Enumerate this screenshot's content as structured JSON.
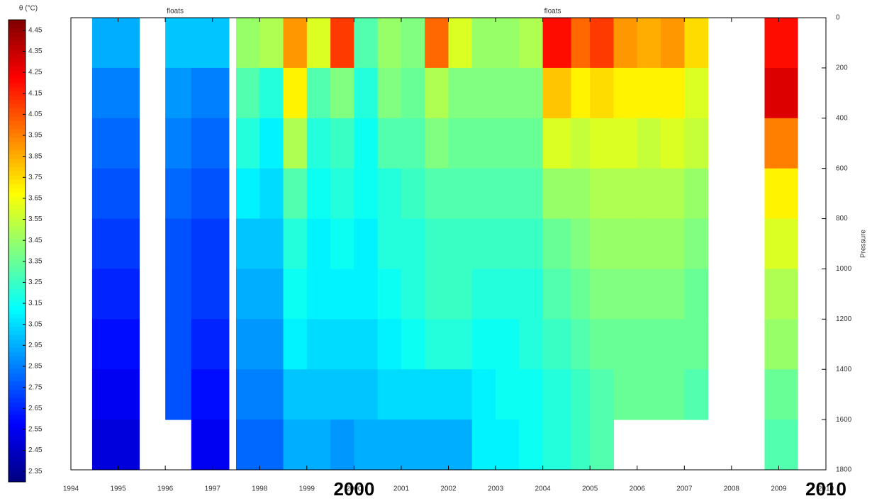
{
  "chart_data": {
    "type": "heatmap",
    "colorbar_label": "θ (°C)",
    "y_label": "Pressure",
    "colormap": "jet",
    "clim": [
      2.3,
      4.5
    ],
    "cticks": [
      4.45,
      4.35,
      4.25,
      4.15,
      4.05,
      3.95,
      3.85,
      3.75,
      3.65,
      3.55,
      3.45,
      3.35,
      3.25,
      3.15,
      3.05,
      2.95,
      2.85,
      2.75,
      2.65,
      2.55,
      2.45,
      2.35
    ],
    "xlim": [
      1994,
      2010
    ],
    "xticks": [
      1994,
      1995,
      1996,
      1997,
      1998,
      1999,
      2000,
      2001,
      2002,
      2003,
      2004,
      2005,
      2006,
      2007,
      2008,
      2009,
      2010
    ],
    "ylim": [
      0,
      1800
    ],
    "y_reversed": true,
    "yticks": [
      0,
      200,
      400,
      600,
      800,
      1000,
      1200,
      1400,
      1600,
      1800
    ],
    "x_bins": [
      1994.45,
      1995.45,
      1996.0,
      1996.55,
      1997.35,
      1997.5,
      1998.0,
      1998.5,
      1999.0,
      1999.5,
      2000.0,
      2000.5,
      2001.0,
      2001.5,
      2002.0,
      2002.5,
      2003.0,
      2003.5,
      2004.0,
      2004.6,
      2005.0,
      2005.5,
      2006.0,
      2006.5,
      2007.0,
      2007.5,
      2008.7,
      2009.4
    ],
    "y_bins": [
      0,
      200,
      400,
      600,
      800,
      1000,
      1200,
      1400,
      1600,
      1800
    ],
    "values": [
      [
        2.95,
        2.85,
        2.8,
        2.75,
        2.7,
        2.65,
        2.6,
        2.55,
        2.5
      ],
      [
        null,
        null,
        null,
        null,
        null,
        null,
        null,
        null,
        null
      ],
      [
        3.0,
        2.9,
        2.85,
        2.8,
        2.75,
        2.75,
        2.75,
        2.75,
        null
      ],
      [
        3.0,
        2.85,
        2.8,
        2.75,
        2.7,
        2.7,
        2.65,
        2.6,
        2.55
      ],
      [
        null,
        null,
        null,
        null,
        null,
        null,
        null,
        null,
        null
      ],
      [
        3.45,
        3.3,
        3.2,
        3.1,
        3.0,
        2.95,
        2.9,
        2.85,
        2.8
      ],
      [
        3.5,
        3.2,
        3.1,
        3.05,
        3.0,
        2.95,
        2.9,
        2.85,
        2.8
      ],
      [
        3.9,
        3.7,
        3.5,
        3.3,
        3.2,
        3.15,
        3.1,
        3.0,
        2.95
      ],
      [
        3.6,
        3.3,
        3.2,
        3.15,
        3.1,
        3.1,
        3.05,
        3.0,
        2.95
      ],
      [
        4.1,
        3.4,
        3.25,
        3.2,
        3.15,
        3.1,
        3.05,
        3.0,
        2.9
      ],
      [
        3.3,
        3.2,
        3.15,
        3.15,
        3.1,
        3.1,
        3.05,
        3.0,
        2.95
      ],
      [
        3.45,
        3.4,
        3.3,
        3.2,
        3.2,
        3.15,
        3.1,
        3.05,
        2.95
      ],
      [
        3.4,
        3.35,
        3.3,
        3.25,
        3.2,
        3.2,
        3.15,
        3.05,
        2.95
      ],
      [
        4.0,
        3.5,
        3.4,
        3.3,
        3.25,
        3.25,
        3.2,
        3.05,
        2.95
      ],
      [
        3.6,
        3.4,
        3.35,
        3.3,
        3.25,
        3.25,
        3.2,
        3.05,
        2.95
      ],
      [
        3.45,
        3.4,
        3.35,
        3.3,
        3.25,
        3.2,
        3.15,
        3.1,
        3.1
      ],
      [
        3.45,
        3.4,
        3.35,
        3.3,
        3.25,
        3.2,
        3.15,
        3.15,
        3.1
      ],
      [
        3.5,
        3.4,
        3.35,
        3.3,
        3.25,
        3.2,
        3.2,
        3.15,
        3.15
      ],
      [
        4.2,
        3.8,
        3.6,
        3.45,
        3.35,
        3.3,
        3.25,
        3.2,
        3.2
      ],
      [
        4.0,
        3.7,
        3.55,
        3.45,
        3.4,
        3.35,
        3.3,
        3.25,
        3.25
      ],
      [
        4.1,
        3.75,
        3.6,
        3.5,
        3.45,
        3.4,
        3.35,
        3.3,
        3.3
      ],
      [
        3.9,
        3.7,
        3.6,
        3.5,
        3.45,
        3.4,
        3.35,
        3.35,
        null
      ],
      [
        3.85,
        3.7,
        3.55,
        3.5,
        3.45,
        3.4,
        3.35,
        3.35,
        null
      ],
      [
        3.9,
        3.7,
        3.6,
        3.5,
        3.45,
        3.4,
        3.35,
        3.35,
        null
      ],
      [
        3.75,
        3.6,
        3.55,
        3.45,
        3.4,
        3.35,
        3.35,
        3.3,
        null
      ],
      [
        null,
        null,
        null,
        null,
        null,
        null,
        null,
        null,
        null
      ],
      [
        4.2,
        4.3,
        3.95,
        3.7,
        3.6,
        3.5,
        3.45,
        3.35,
        3.3
      ]
    ],
    "annotations": [
      {
        "text": "floats",
        "x": 1996.0,
        "position": "top"
      },
      {
        "text": "floats",
        "x": 2004.0,
        "position": "top"
      },
      {
        "text": "2000",
        "x": 2000,
        "position": "bottom"
      },
      {
        "text": "2010",
        "x": 2010,
        "position": "bottom"
      }
    ]
  }
}
